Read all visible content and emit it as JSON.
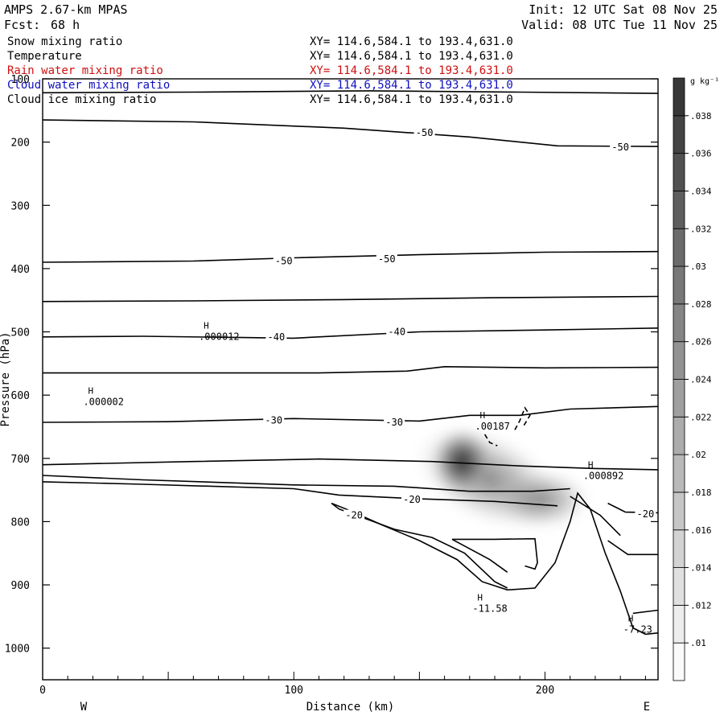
{
  "header": {
    "model": "AMPS 2.67-km MPAS",
    "init": "Init: 12 UTC Sat 08 Nov 25",
    "fcst_label": "Fcst:",
    "fcst_value": "68 h",
    "valid": "Valid: 08 UTC Tue 11 Nov 25"
  },
  "fields": [
    {
      "name": "Snow mixing ratio",
      "xy": "XY= 114.6,584.1 to 193.4,631.0",
      "color": "#000000"
    },
    {
      "name": "Temperature",
      "xy": "XY= 114.6,584.1 to 193.4,631.0",
      "color": "#000000"
    },
    {
      "name": "Rain water mixing ratio",
      "xy": "XY= 114.6,584.1 to 193.4,631.0",
      "color": "#d01010"
    },
    {
      "name": "Cloud water mixing ratio",
      "xy": "XY= 114.6,584.1 to 193.4,631.0",
      "color": "#1010c0"
    },
    {
      "name": "Cloud ice mixing ratio",
      "xy": "XY= 114.6,584.1 to 193.4,631.0",
      "color": "#000000"
    }
  ],
  "chart_data": {
    "type": "contour cross-section",
    "xlabel": "Distance (km)",
    "ylabel": "Pressure (hPa)",
    "xlim": [
      0,
      245
    ],
    "ylim": [
      1050,
      100
    ],
    "xticks": [
      0,
      100,
      200
    ],
    "yticks": [
      100,
      200,
      300,
      400,
      500,
      600,
      700,
      800,
      900,
      1000
    ],
    "orientation": {
      "left": "W",
      "right": "E"
    },
    "colorbar": {
      "unit": "g kg⁻¹",
      "ticks": [
        ".01",
        ".012",
        ".014",
        ".016",
        ".018",
        ".02",
        ".022",
        ".024",
        ".026",
        ".028",
        ".03",
        ".032",
        ".034",
        ".036",
        ".038"
      ]
    },
    "temperature_labels": [
      {
        "text": "-50",
        "x": 152,
        "p": 185
      },
      {
        "text": "-50",
        "x": 230,
        "p": 208
      },
      {
        "text": "-50",
        "x": 96,
        "p": 388
      },
      {
        "text": "-50",
        "x": 137,
        "p": 385
      },
      {
        "text": "-40",
        "x": 93,
        "p": 508
      },
      {
        "text": "-40",
        "x": 141,
        "p": 500
      },
      {
        "text": "-30",
        "x": 92,
        "p": 640
      },
      {
        "text": "-30",
        "x": 140,
        "p": 643
      },
      {
        "text": "-20",
        "x": 147,
        "p": 765
      },
      {
        "text": "-20",
        "x": 124,
        "p": 790
      },
      {
        "text": "-20",
        "x": 240,
        "p": 788
      }
    ],
    "extrema": [
      {
        "symbol": "H",
        "value": ".000012",
        "x": 66,
        "p": 515
      },
      {
        "symbol": "H",
        "value": ".000002",
        "x": 20,
        "p": 618
      },
      {
        "symbol": "H",
        "value": ".00187",
        "x": 176,
        "p": 657
      },
      {
        "symbol": "H",
        "value": ".000892",
        "x": 219,
        "p": 735
      },
      {
        "symbol": "H",
        "value": "-11.58",
        "x": 175,
        "p": 945
      },
      {
        "symbol": "H",
        "value": "-7.23",
        "x": 235,
        "p": 978
      }
    ],
    "cloud_maximum": {
      "x": 167,
      "p": 705,
      "value": 0.038
    }
  }
}
